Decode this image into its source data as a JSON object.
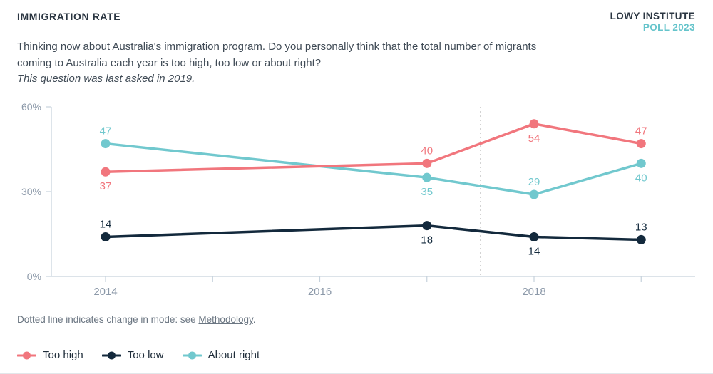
{
  "header": {
    "title": "IMMIGRATION RATE",
    "brand_line1": "LOWY INSTITUTE",
    "brand_line2": "POLL 2023"
  },
  "intro": {
    "question": "Thinking now about Australia's immigration program. Do you personally think that the total number of migrants coming to Australia each year is too high, too low or about right?",
    "note": "This question was last asked in 2019."
  },
  "footnote": {
    "prefix": "Dotted line indicates change in mode: see ",
    "link": "Methodology",
    "suffix": "."
  },
  "legend": [
    {
      "label": "Too high",
      "color": "#F1767D"
    },
    {
      "label": "Too low",
      "color": "#13293C"
    },
    {
      "label": "About right",
      "color": "#71C8CE"
    }
  ],
  "colors": {
    "axis": "#C6D2DC",
    "axis_text": "#8C99A9",
    "dotted_line": "#D0D0D0"
  },
  "chart_data": {
    "type": "line",
    "title": "Immigration rate",
    "x": [
      2014,
      2017,
      2018,
      2019
    ],
    "x_ticks": [
      2014,
      2015,
      2016,
      2017,
      2018,
      2019
    ],
    "x_tick_labels": {
      "2014": "2014",
      "2016": "2016",
      "2018": "2018"
    },
    "ylim": [
      0,
      60
    ],
    "y_ticks": [
      {
        "value": 0,
        "label": "0%"
      },
      {
        "value": 30,
        "label": "30%"
      },
      {
        "value": 60,
        "label": "60%"
      }
    ],
    "grid": false,
    "legend_position": "bottom-left",
    "mode_change_dotted_line_x": 2017.5,
    "series": [
      {
        "name": "About right",
        "color": "#71C8CE",
        "values": [
          47,
          35,
          29,
          40
        ],
        "label_placement": [
          "above",
          "below",
          "above",
          "below"
        ]
      },
      {
        "name": "Too high",
        "color": "#F1767D",
        "values": [
          37,
          40,
          54,
          47
        ],
        "label_placement": [
          "below",
          "above",
          "below",
          "above"
        ]
      },
      {
        "name": "Too low",
        "color": "#13293C",
        "values": [
          14,
          18,
          14,
          13
        ],
        "label_placement": [
          "above",
          "below",
          "below",
          "above"
        ]
      }
    ]
  }
}
